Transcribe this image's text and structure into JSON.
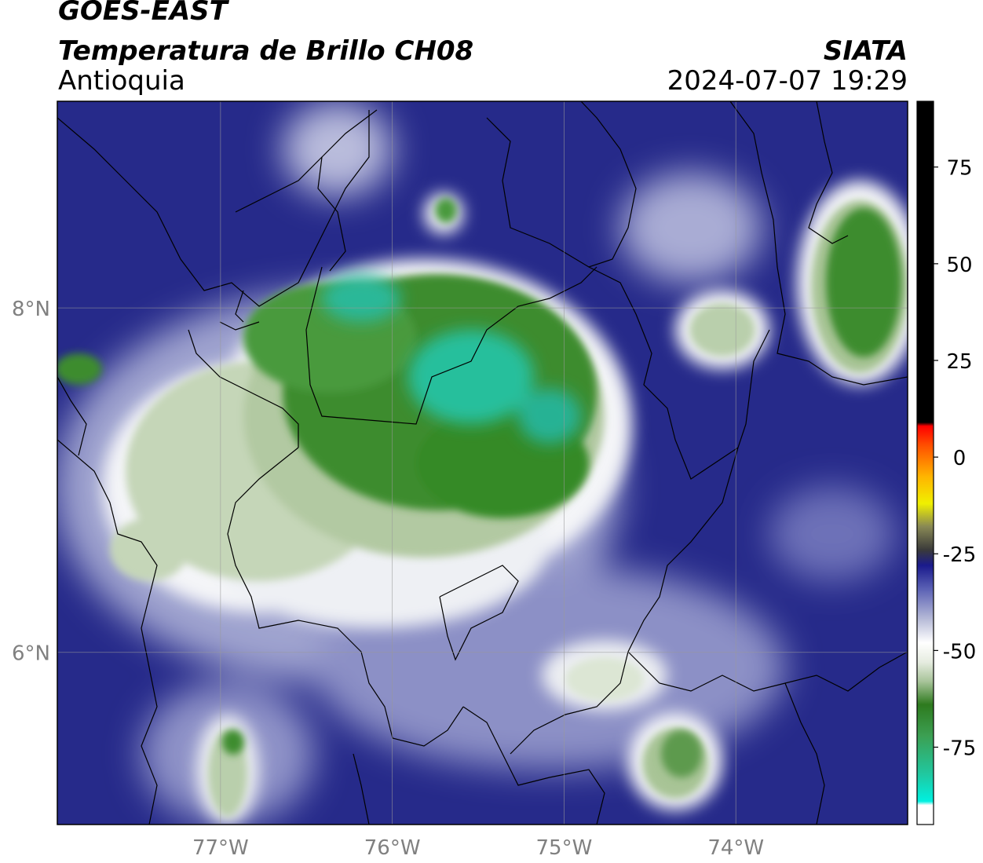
{
  "header": {
    "satellite": "GOES-EAST",
    "product": "Temperatura de Brillo CH08",
    "region": "Antioquia",
    "organization": "SIATA",
    "timestamp": "2024-07-07 19:29"
  },
  "map": {
    "lon_range": [
      -77.95,
      -73.0
    ],
    "lat_range": [
      5.0,
      9.2
    ],
    "lon_ticks": [
      {
        "value": -77,
        "label": "77°W"
      },
      {
        "value": -76,
        "label": "76°W"
      },
      {
        "value": -75,
        "label": "75°W"
      },
      {
        "value": -74,
        "label": "74°W"
      }
    ],
    "lat_ticks": [
      {
        "value": 8,
        "label": "8°N"
      },
      {
        "value": 6,
        "label": "6°N"
      }
    ],
    "gridlines": true
  },
  "colorbar": {
    "range": [
      -95,
      92
    ],
    "ticks": [
      {
        "value": 75,
        "label": "75"
      },
      {
        "value": 50,
        "label": "50"
      },
      {
        "value": 25,
        "label": "25"
      },
      {
        "value": 0,
        "label": "0"
      },
      {
        "value": -25,
        "label": "-25"
      },
      {
        "value": -50,
        "label": "-50"
      },
      {
        "value": -75,
        "label": "-75"
      }
    ],
    "stops": [
      {
        "value": -95,
        "color": "#ffffff"
      },
      {
        "value": -90,
        "color": "#ffffff"
      },
      {
        "value": -89,
        "color": "#00f0e0"
      },
      {
        "value": -82,
        "color": "#20c8a0"
      },
      {
        "value": -72,
        "color": "#3c9f52"
      },
      {
        "value": -64,
        "color": "#2e7a1e"
      },
      {
        "value": -58,
        "color": "#a8c49a"
      },
      {
        "value": -53,
        "color": "#e6ece0"
      },
      {
        "value": -48,
        "color": "#ffffff"
      },
      {
        "value": -42,
        "color": "#b8bcd8"
      },
      {
        "value": -34,
        "color": "#5a60b4"
      },
      {
        "value": -28,
        "color": "#1a1a8c"
      },
      {
        "value": -24,
        "color": "#3a3a3a"
      },
      {
        "value": -18,
        "color": "#888855"
      },
      {
        "value": -12,
        "color": "#f0f000"
      },
      {
        "value": -5,
        "color": "#ffb400"
      },
      {
        "value": 3,
        "color": "#ff5000"
      },
      {
        "value": 8,
        "color": "#ff0000"
      },
      {
        "value": 9,
        "color": "#000000"
      },
      {
        "value": 92,
        "color": "#000000"
      }
    ]
  },
  "colors": {
    "background_navy": "#262a8a",
    "cold_green": "#358a28",
    "coldest_cyan": "#24c8a6",
    "pale_green": "#c8d8bc",
    "white_band": "#f2f4f0",
    "border_line": "#000000",
    "grid_line": "#9a9a9a"
  }
}
